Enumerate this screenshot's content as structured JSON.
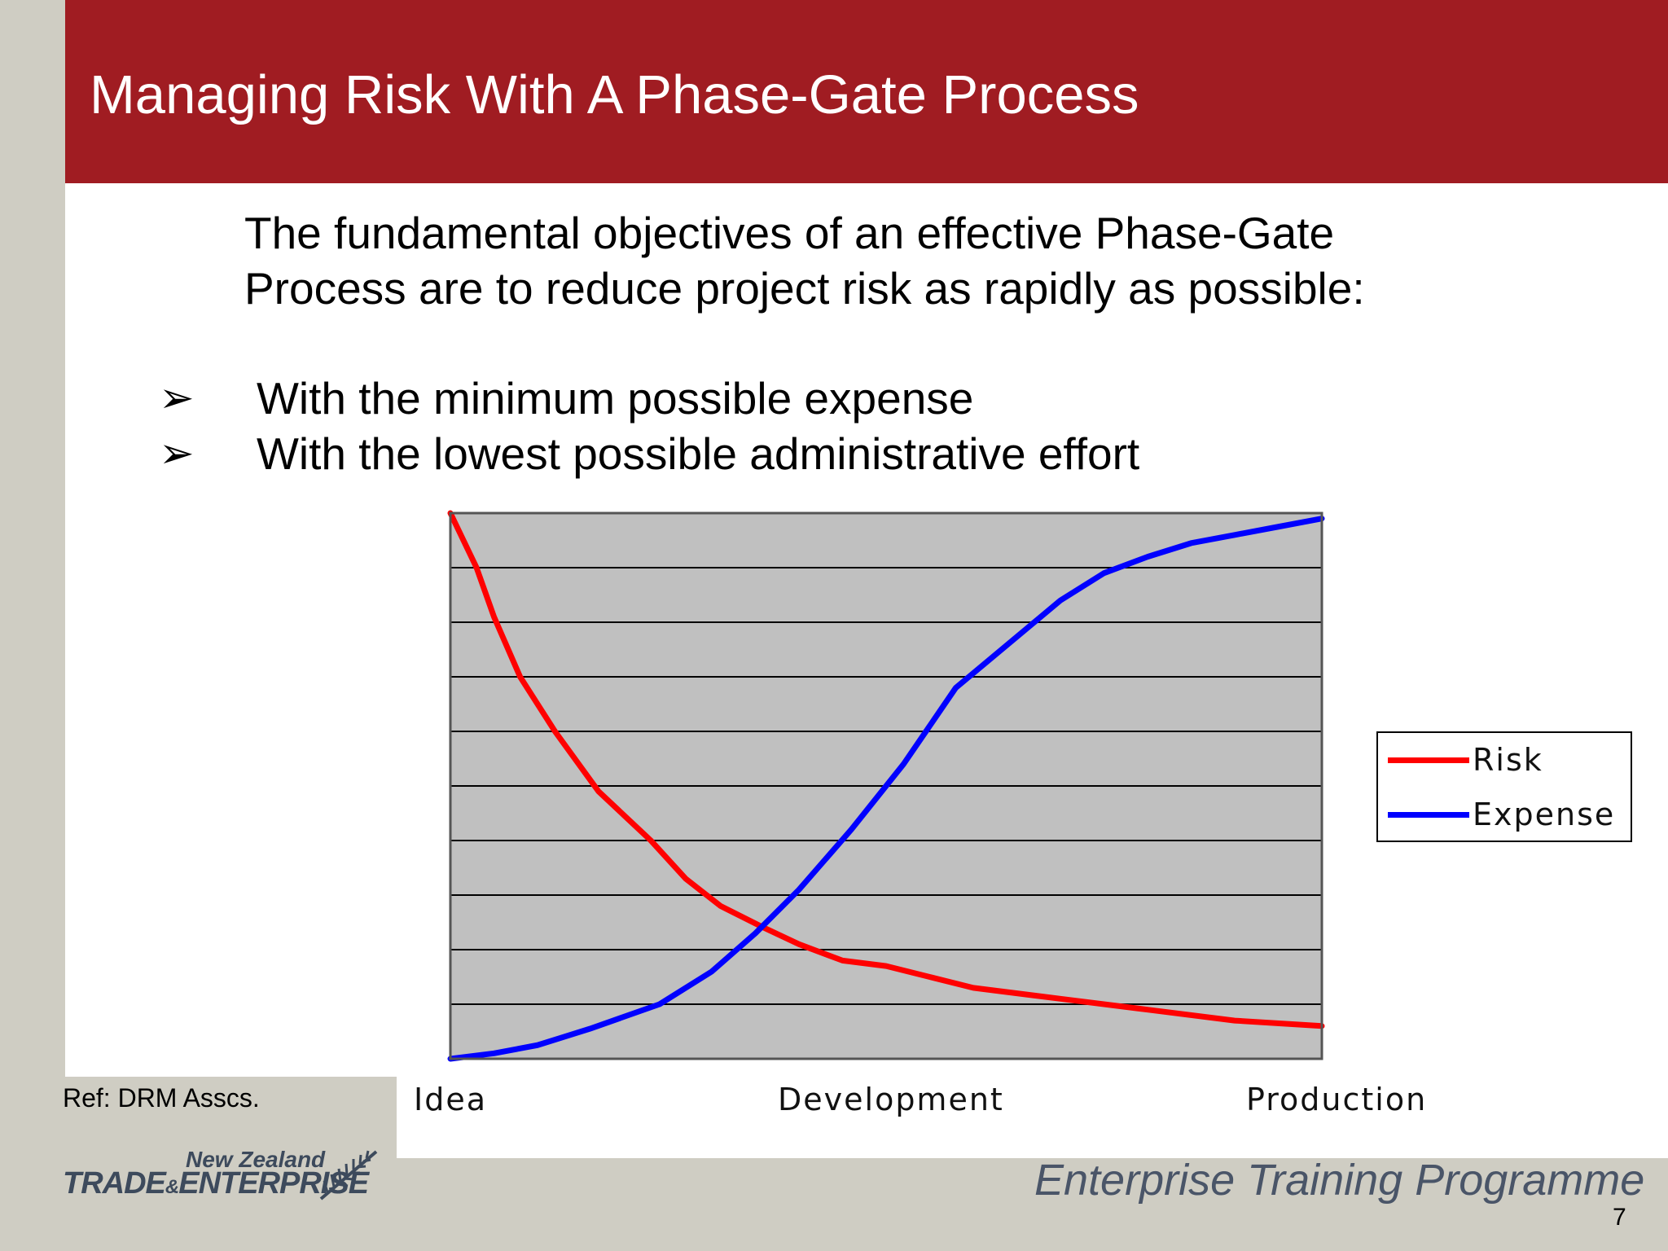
{
  "slide": {
    "title": "Managing Risk With A Phase-Gate Process",
    "intro": "The fundamental objectives of an effective Phase-Gate\nProcess are to reduce project risk as rapidly as possible:",
    "bullets": [
      "With the minimum possible expense",
      "With the lowest possible administrative effort"
    ],
    "bullet_glyph": "➢",
    "reference": "Ref: DRM Asscs.",
    "page_number": "7"
  },
  "footer": {
    "brand_line1": "New Zealand",
    "brand_line2_a": "TRADE",
    "brand_line2_amp": "&",
    "brand_line2_b": "ENTERPRISE",
    "programme": "Enterprise Training Programme",
    "logo_icon": "fern-icon"
  },
  "chart_data": {
    "type": "line",
    "title": "",
    "xlabel": "",
    "ylabel": "",
    "categories": [
      "Idea",
      "Development",
      "Production"
    ],
    "x_range": [
      0,
      100
    ],
    "ylim": [
      0,
      10
    ],
    "grid": true,
    "legend_position": "right",
    "plot_background": "#c0c0c0",
    "series": [
      {
        "name": "Risk",
        "color": "#ff0000",
        "x": [
          0,
          3,
          5,
          8,
          12,
          17,
          23,
          27,
          31,
          36,
          40,
          45,
          50,
          55,
          60,
          70,
          80,
          90,
          100
        ],
        "y": [
          10,
          9.0,
          8.1,
          7.0,
          6.0,
          4.9,
          4.0,
          3.3,
          2.8,
          2.4,
          2.1,
          1.8,
          1.7,
          1.5,
          1.3,
          1.1,
          0.9,
          0.7,
          0.6
        ]
      },
      {
        "name": "Expense",
        "color": "#0000ff",
        "x": [
          0,
          5,
          10,
          16,
          24,
          30,
          35,
          40,
          46,
          52,
          58,
          64,
          70,
          75,
          80,
          85,
          90,
          95,
          100
        ],
        "y": [
          0,
          0.1,
          0.25,
          0.55,
          1.0,
          1.6,
          2.3,
          3.1,
          4.2,
          5.4,
          6.8,
          7.6,
          8.4,
          8.9,
          9.2,
          9.45,
          9.6,
          9.75,
          9.9
        ]
      }
    ]
  }
}
